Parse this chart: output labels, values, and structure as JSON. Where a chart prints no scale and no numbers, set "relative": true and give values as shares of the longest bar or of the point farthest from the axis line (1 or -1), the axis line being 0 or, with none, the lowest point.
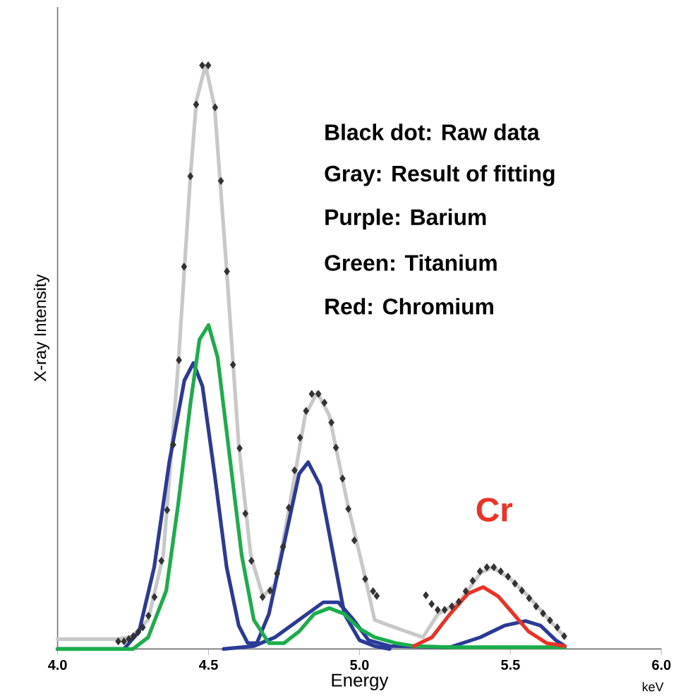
{
  "chart_data": {
    "type": "line",
    "xlabel": "Energy",
    "ylabel": "X-ray Intensity",
    "relative": true,
    "xlim": [
      4.0,
      6.0
    ],
    "xticks": [
      {
        "value": 4.0,
        "label": "4.0"
      },
      4.5,
      {
        "value": 5.0,
        "label": "5.0"
      },
      5.5,
      {
        "value": 6.0,
        "label": "6.0"
      }
    ],
    "annotations": [
      "Black dot: Raw data",
      "Gray: Result of fitting",
      "Purple: Barium",
      "Green: Titanium",
      "Red: Chromium",
      "keV",
      "Cr"
    ],
    "series": [
      {
        "type": "line",
        "color": "#c8c8c8",
        "x": [
          4.0,
          4.2,
          4.25,
          4.3,
          4.35,
          4.4,
          4.44,
          4.46,
          4.49,
          4.52,
          4.56,
          4.6,
          4.64,
          4.68,
          4.72,
          4.77,
          4.82,
          4.86,
          4.9,
          4.96,
          5.02,
          5.05,
          5.1,
          5.21,
          5.26,
          5.33,
          5.4,
          5.44,
          5.5,
          5.56,
          5.62,
          5.68
        ],
        "values": [
          0.017,
          0.017,
          0.022,
          0.05,
          0.16,
          0.49,
          0.81,
          0.94,
          1.0,
          0.93,
          0.65,
          0.35,
          0.16,
          0.09,
          0.11,
          0.25,
          0.4,
          0.44,
          0.4,
          0.25,
          0.12,
          0.05,
          0.04,
          0.02,
          0.06,
          0.08,
          0.13,
          0.14,
          0.12,
          0.09,
          0.055,
          0.02
        ]
      },
      {
        "type": "line",
        "color": "#2b3a97",
        "x": [
          4.0,
          4.22,
          4.27,
          4.32,
          4.37,
          4.42,
          4.45,
          4.48,
          4.52,
          4.56,
          4.6,
          4.63,
          4.66,
          4.7,
          4.75,
          4.8,
          4.83,
          4.87,
          4.91,
          4.95,
          5.0,
          5.05,
          5.1
        ],
        "values": [
          0,
          0,
          0.03,
          0.14,
          0.32,
          0.46,
          0.49,
          0.45,
          0.3,
          0.14,
          0.04,
          0.01,
          0.01,
          0.06,
          0.18,
          0.3,
          0.32,
          0.28,
          0.17,
          0.06,
          0.015,
          0.005,
          0
        ]
      },
      {
        "type": "line",
        "color": "#2b3a97",
        "x": [
          4.55,
          4.65,
          4.72,
          4.8,
          4.88,
          4.93,
          4.98,
          5.03,
          5.1,
          5.3,
          5.4,
          5.48,
          5.55,
          5.6,
          5.65,
          5.68
        ],
        "values": [
          0,
          0.005,
          0.02,
          0.05,
          0.08,
          0.08,
          0.05,
          0.015,
          0.005,
          0.003,
          0.02,
          0.04,
          0.048,
          0.04,
          0.015,
          0.005
        ]
      },
      {
        "type": "line",
        "color": "#1aae4a",
        "x": [
          4.0,
          4.25,
          4.3,
          4.36,
          4.4,
          4.44,
          4.47,
          4.5,
          4.53,
          4.57,
          4.61,
          4.65,
          4.7,
          4.75,
          4.8,
          4.85,
          4.9,
          4.95,
          5.0,
          5.05,
          5.12,
          5.18,
          5.3,
          5.68
        ],
        "values": [
          0,
          0,
          0.02,
          0.1,
          0.25,
          0.42,
          0.53,
          0.555,
          0.5,
          0.33,
          0.16,
          0.05,
          0.01,
          0.01,
          0.03,
          0.06,
          0.07,
          0.06,
          0.035,
          0.02,
          0.01,
          0.005,
          0.003,
          0.003
        ]
      },
      {
        "type": "line",
        "color": "#ee3124",
        "x": [
          5.18,
          5.24,
          5.3,
          5.36,
          5.41,
          5.46,
          5.51,
          5.56,
          5.62,
          5.68
        ],
        "values": [
          0.005,
          0.02,
          0.06,
          0.095,
          0.106,
          0.09,
          0.06,
          0.03,
          0.01,
          0.005
        ]
      },
      {
        "type": "scatter",
        "color": "#333333",
        "marker": "diamond",
        "x": [
          4.201,
          4.22,
          4.236,
          4.251,
          4.267,
          4.282,
          4.301,
          4.321,
          4.344,
          4.363,
          4.383,
          4.402,
          4.419,
          4.44,
          4.459,
          4.479,
          4.499,
          4.522,
          4.541,
          4.561,
          4.581,
          4.603,
          4.622,
          4.642,
          4.679,
          4.704,
          4.727,
          4.747,
          4.766,
          4.785,
          4.803,
          4.823,
          4.842,
          4.864,
          4.884,
          4.907,
          4.922,
          4.944,
          4.963,
          4.983,
          5.019,
          5.045,
          5.057,
          5.22,
          5.239,
          5.259,
          5.282,
          5.306,
          5.329,
          5.352,
          5.375,
          5.399,
          5.422,
          5.445,
          5.468,
          5.492,
          5.515,
          5.538,
          5.562,
          5.585,
          5.608,
          5.631,
          5.655,
          5.678
        ],
        "values": [
          0.013,
          0.013,
          0.017,
          0.022,
          0.029,
          0.037,
          0.057,
          0.089,
          0.151,
          0.238,
          0.35,
          0.495,
          0.655,
          0.81,
          0.933,
          1.0,
          1.0,
          0.928,
          0.802,
          0.647,
          0.487,
          0.344,
          0.232,
          0.151,
          0.089,
          0.1,
          0.129,
          0.175,
          0.242,
          0.306,
          0.362,
          0.408,
          0.437,
          0.437,
          0.422,
          0.388,
          0.345,
          0.292,
          0.24,
          0.186,
          0.12,
          0.099,
          0.091,
          0.092,
          0.077,
          0.067,
          0.067,
          0.073,
          0.081,
          0.099,
          0.117,
          0.133,
          0.14,
          0.14,
          0.133,
          0.124,
          0.112,
          0.1,
          0.087,
          0.073,
          0.061,
          0.049,
          0.037,
          0.022
        ]
      }
    ]
  }
}
